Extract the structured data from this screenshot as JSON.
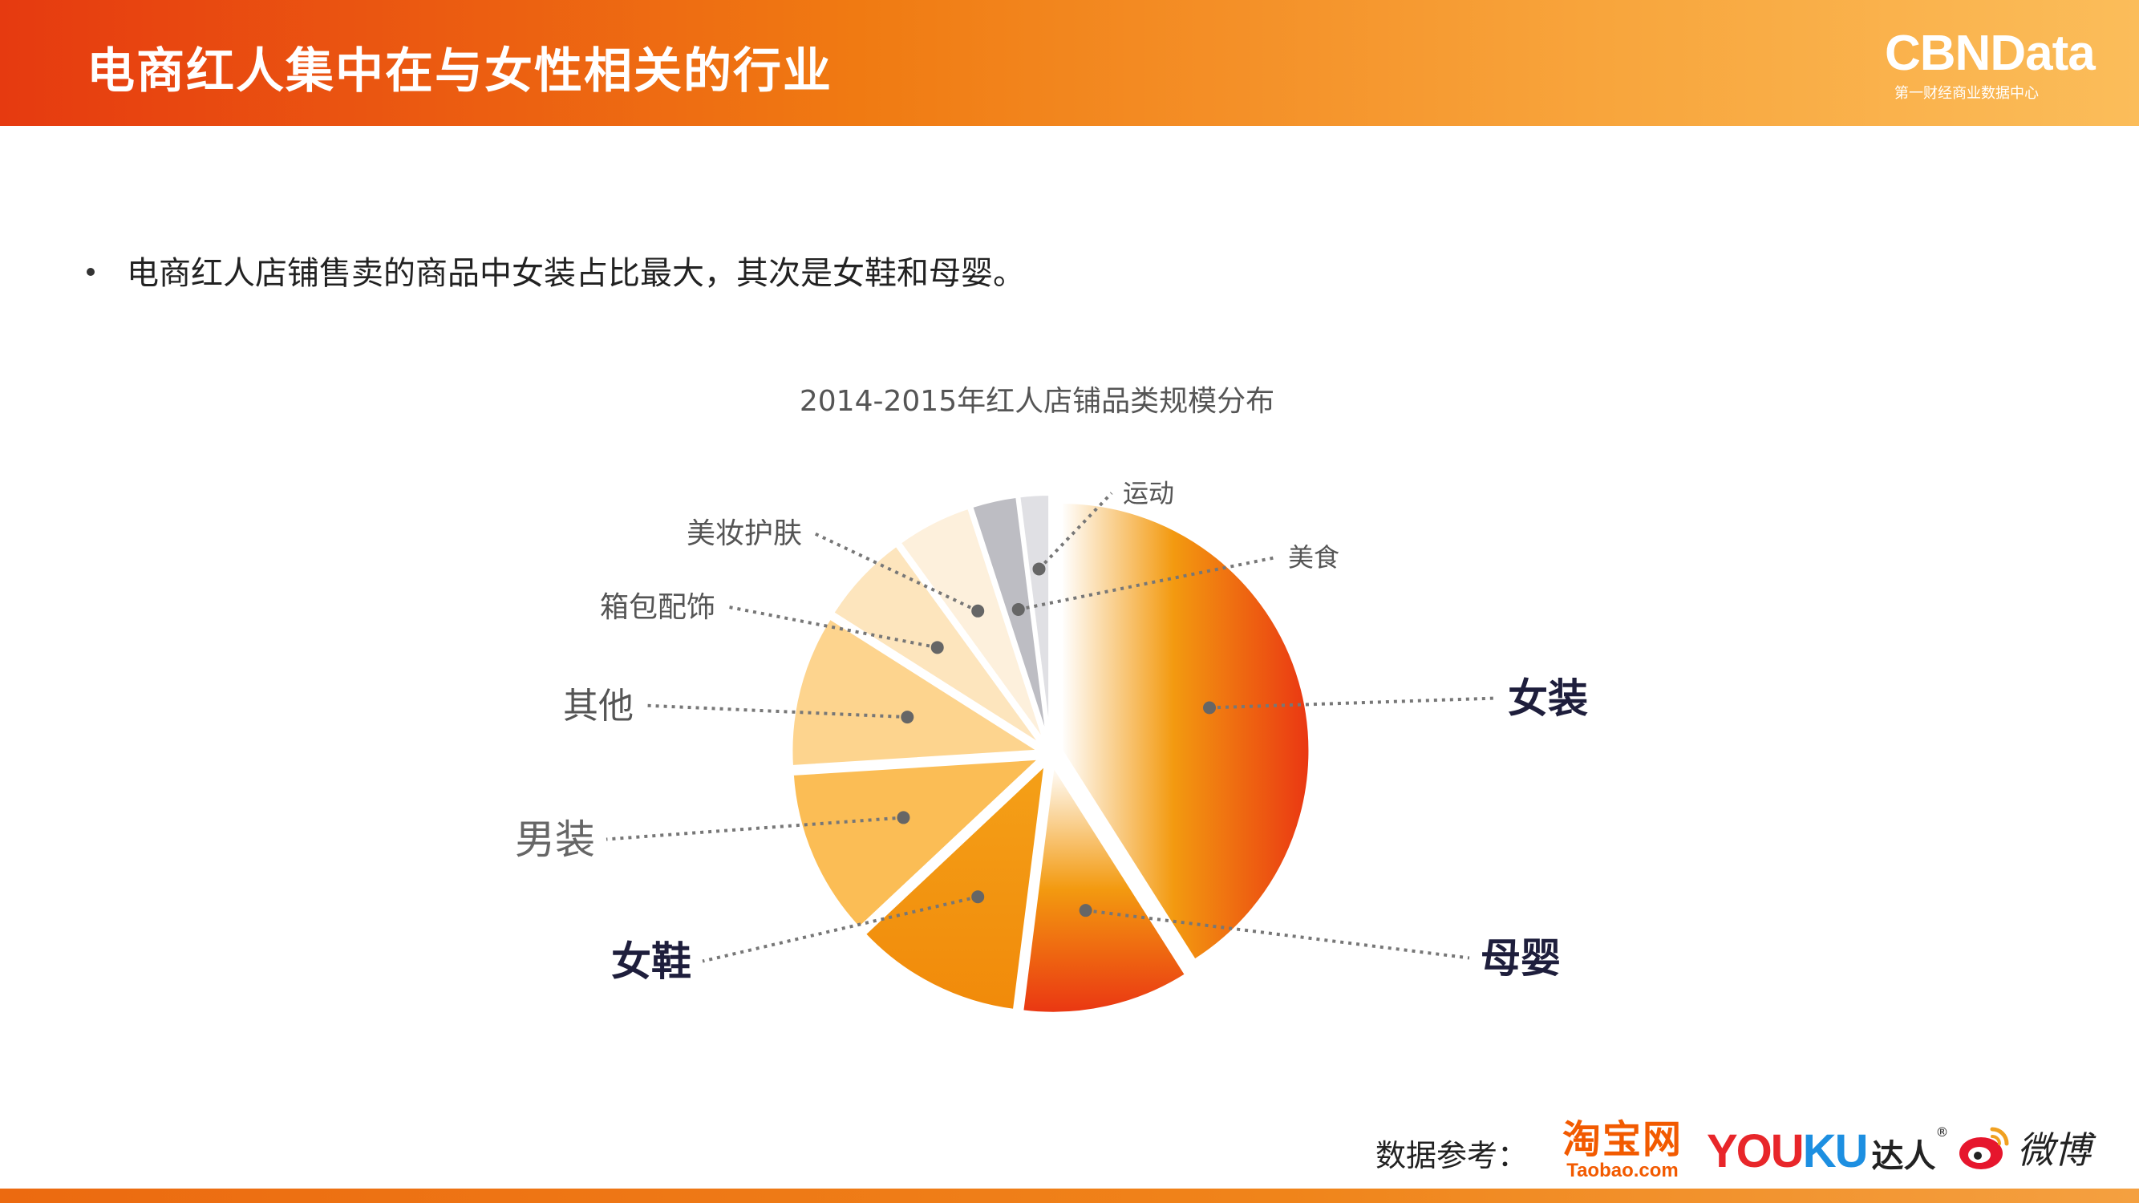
{
  "header": {
    "title": "电商红人集中在与女性相关的行业"
  },
  "brand": {
    "name": "CBNData",
    "subtitle": "第一财经商业数据中心"
  },
  "bullet": {
    "text": "电商红人店铺售卖的商品中女装占比最大，其次是女鞋和母婴。"
  },
  "chart_data": {
    "type": "pie",
    "title": "2014-2015年红人店铺品类规模分布",
    "slices": [
      {
        "name": "女装",
        "value": 41,
        "color": "#f18a12",
        "emphasis": true
      },
      {
        "name": "母婴",
        "value": 11,
        "color": "#f06010",
        "emphasis": true
      },
      {
        "name": "女鞋",
        "value": 11,
        "color": "#f49c14",
        "emphasis": true
      },
      {
        "name": "男装",
        "value": 11,
        "color": "#fbbd55",
        "emphasis": false
      },
      {
        "name": "其他",
        "value": 10,
        "color": "#fdd48e",
        "emphasis": false
      },
      {
        "name": "箱包配饰",
        "value": 6,
        "color": "#fde5bd",
        "emphasis": false
      },
      {
        "name": "美妆护肤",
        "value": 5,
        "color": "#fdf0dc",
        "emphasis": false
      },
      {
        "name": "美食",
        "value": 3,
        "color": "#bdbdc3",
        "emphasis": false
      },
      {
        "name": "运动",
        "value": 2,
        "color": "#e0e0e4",
        "emphasis": false
      }
    ],
    "legend": "callout-labels"
  },
  "footer": {
    "source_label": "数据参考：",
    "logos": {
      "taobao_cn": "淘宝网",
      "taobao_en": "Taobao.com",
      "youku_you": "YOU",
      "youku_ku": "KU",
      "youku_daren": "达人",
      "youku_reg": "®",
      "weibo": "微博"
    }
  }
}
